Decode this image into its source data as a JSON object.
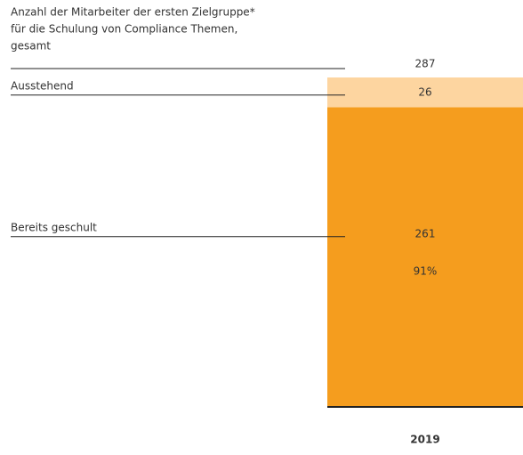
{
  "chart_data": {
    "type": "stacked-bar",
    "title": [
      "Anzahl der Mitarbeiter der ersten Zielgruppe*",
      "für die Schulung von Compliance Themen,",
      "gesamt"
    ],
    "categories": [
      "2019"
    ],
    "series": [
      {
        "name": "Bereits geschult",
        "color": "#f59d1e",
        "values": [
          261
        ]
      },
      {
        "name": "Ausstehend",
        "color": "#fdd5a0",
        "values": [
          26
        ]
      }
    ],
    "totals": [
      287
    ],
    "share_labels": [
      {
        "value": 91,
        "label": "91%"
      }
    ]
  }
}
